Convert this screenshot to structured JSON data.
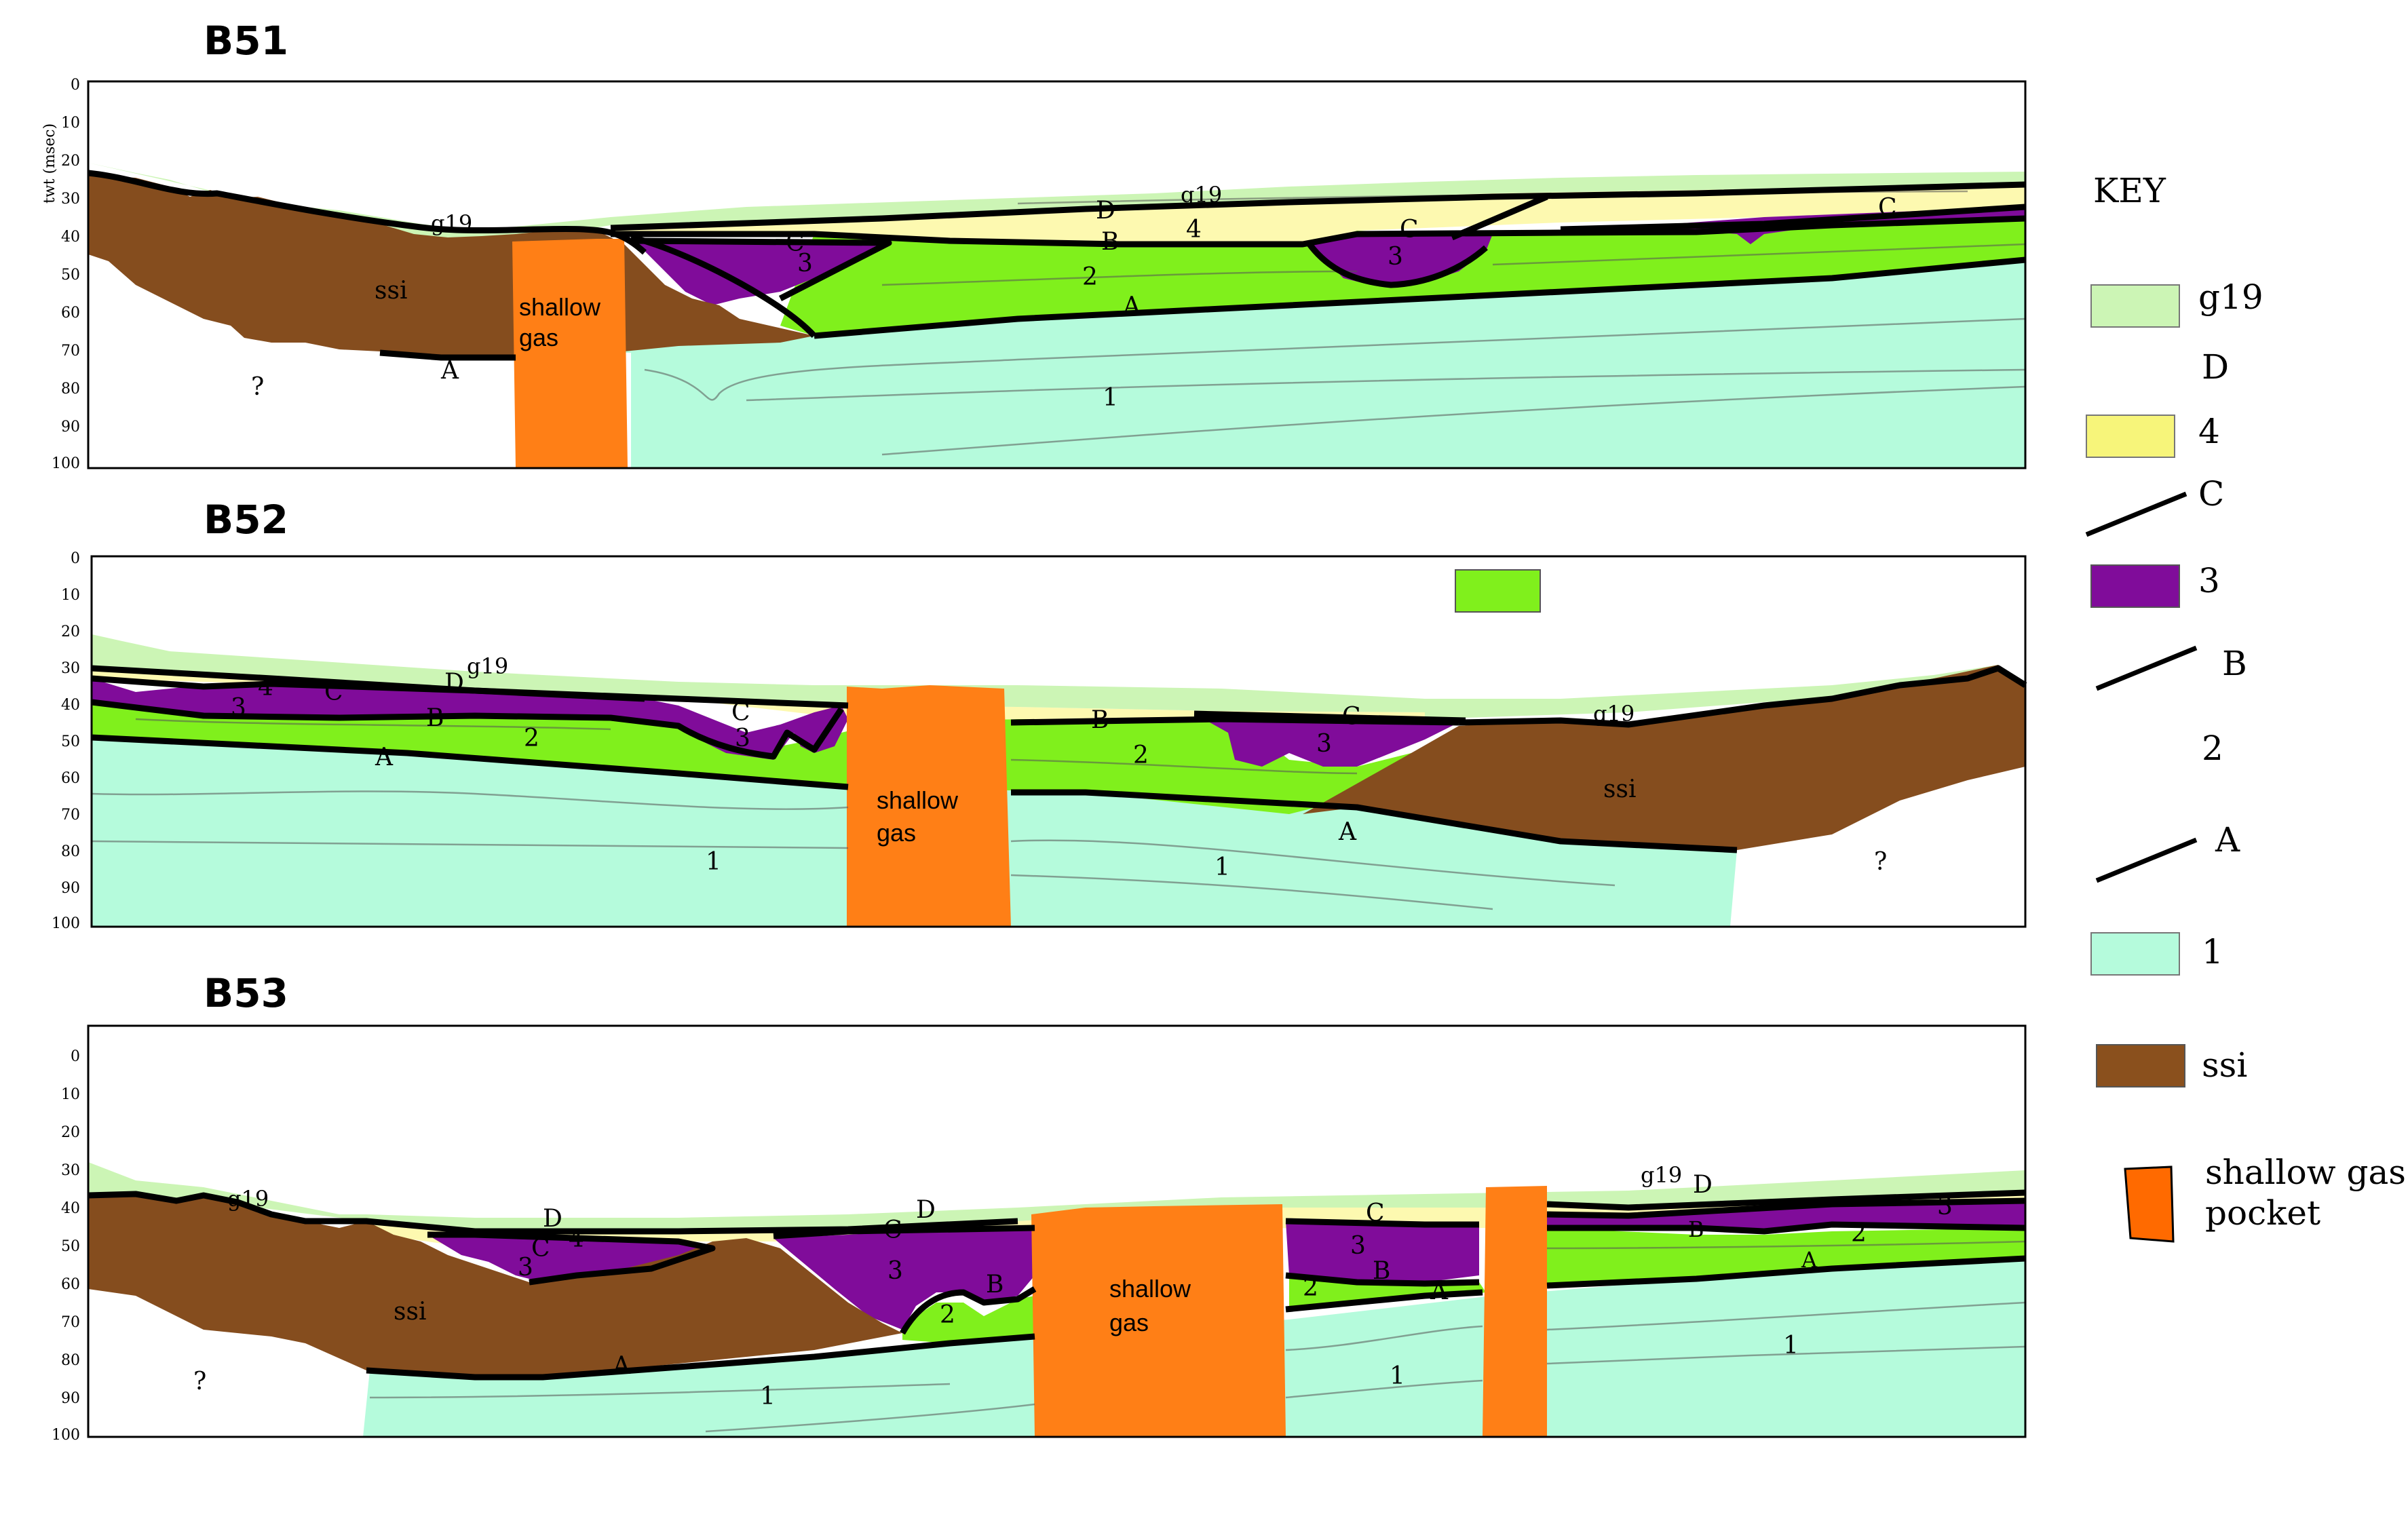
{
  "y_axis": {
    "title": "twt (msec)",
    "ticks": [
      "0",
      "10",
      "20",
      "30",
      "40",
      "50",
      "60",
      "70",
      "80",
      "90",
      "100"
    ]
  },
  "panels": [
    {
      "title": "B51",
      "labels": {
        "g19": "g19",
        "D": "D",
        "four": "4",
        "C1": "C",
        "C2": "C",
        "C3": "C",
        "three1": "3",
        "three2": "3",
        "B": "B",
        "two": "2",
        "A1": "A",
        "A2": "A",
        "one": "1",
        "ssi": "ssi",
        "q": "?"
      },
      "gas": [
        "shallow",
        "gas"
      ]
    },
    {
      "title": "B52",
      "labels": {
        "g19a": "g19",
        "g19b": "g19",
        "D": "D",
        "four": "4",
        "C1": "C",
        "C2": "C",
        "C3": "C",
        "three1": "3",
        "three2": "3",
        "three3": "3",
        "B1": "B",
        "B2": "B",
        "two1": "2",
        "two2": "2",
        "A1": "A",
        "A2": "A",
        "one1": "1",
        "one2": "1",
        "ssi": "ssi",
        "q": "?"
      },
      "gas": [
        "shallow",
        "gas"
      ]
    },
    {
      "title": "B53",
      "labels": {
        "g19a": "g19",
        "g19b": "g19",
        "D1": "D",
        "D2": "D",
        "D3": "D",
        "four": "4",
        "C1": "C",
        "C2": "C",
        "C3": "C",
        "three1": "3",
        "three2": "3",
        "three3": "3",
        "three4": "3",
        "B1": "B",
        "B2": "B",
        "B3": "B",
        "two1": "2",
        "two2": "2",
        "two3": "2",
        "A1": "A",
        "A2": "A",
        "A3": "A",
        "one1": "1",
        "one2": "1",
        "one3": "1",
        "ssi": "ssi",
        "q": "?"
      },
      "gas": [
        "shallow",
        "gas"
      ]
    }
  ],
  "key": {
    "title": "KEY",
    "items": [
      {
        "label": "g19",
        "type": "swatch",
        "color": "#ccf5b5"
      },
      {
        "label": "D",
        "type": "text"
      },
      {
        "label": "4",
        "type": "swatch",
        "color": "#f7f57a"
      },
      {
        "label": "C",
        "type": "line"
      },
      {
        "label": "3",
        "type": "swatch",
        "color": "#800c9a"
      },
      {
        "label": "B",
        "type": "line"
      },
      {
        "label": "2",
        "type": "text"
      },
      {
        "label": "A",
        "type": "line"
      },
      {
        "label": "1",
        "type": "swatch",
        "color": "#b5fbdc"
      },
      {
        "label": "ssi",
        "type": "swatch",
        "color": "#8a501d"
      },
      {
        "label": "shallow gas",
        "label2": "pocket",
        "type": "swatch",
        "color": "#ff6a00"
      }
    ]
  },
  "colors": {
    "g19": "#ccf5b5",
    "unit4": "#fdf9b0",
    "unit3": "#800c9a",
    "unit2": "#80f01c",
    "unit1": "#b5fbdc",
    "ssi": "#854d1e",
    "gas": "#ff7f16"
  }
}
